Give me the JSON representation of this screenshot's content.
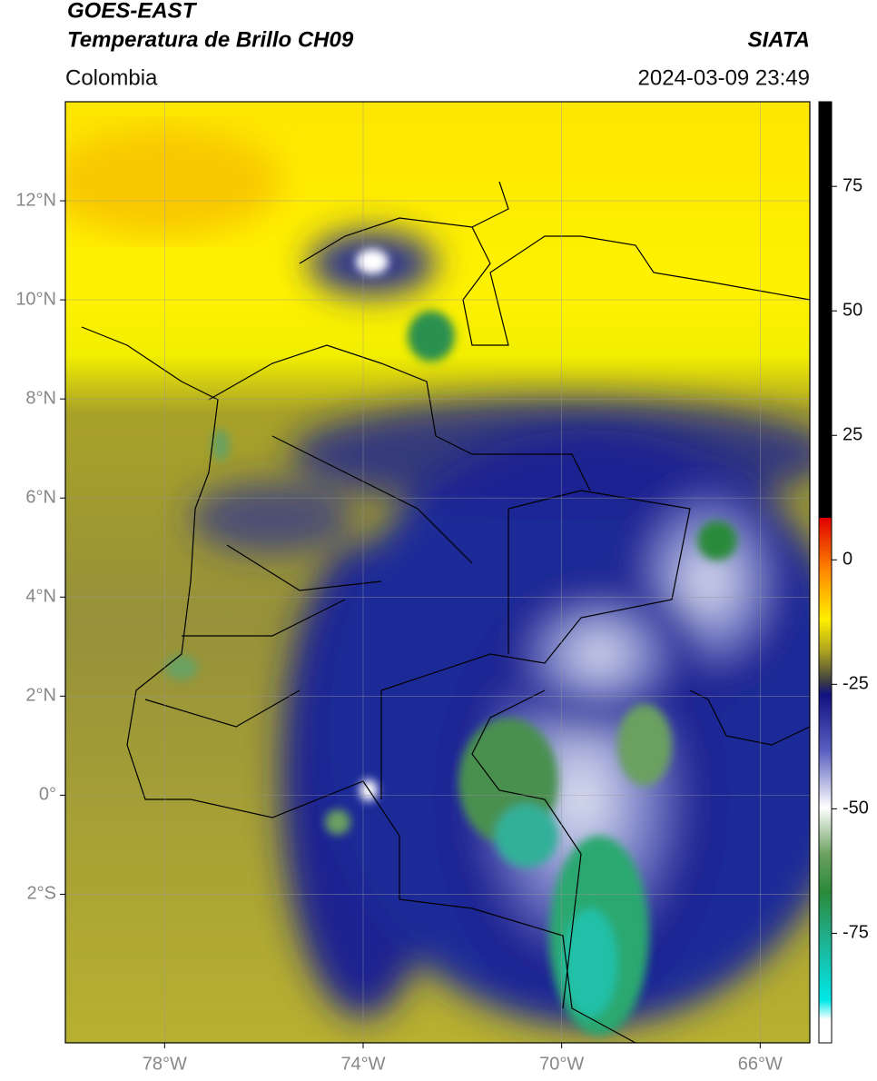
{
  "header": {
    "title": "GOES-EAST",
    "subtitle": "Temperatura de Brillo CH09",
    "source": "SIATA",
    "region": "Colombia",
    "datetime": "2024-03-09 23:49"
  },
  "map": {
    "xlim": [
      -80,
      -65
    ],
    "ylim": [
      -5,
      14
    ],
    "xticks": [
      {
        "value": -78,
        "label": "78°W"
      },
      {
        "value": -74,
        "label": "74°W"
      },
      {
        "value": -70,
        "label": "70°W"
      },
      {
        "value": -66,
        "label": "66°W"
      }
    ],
    "yticks": [
      {
        "value": 12,
        "label": "12°N"
      },
      {
        "value": 10,
        "label": "10°N"
      },
      {
        "value": 8,
        "label": "8°N"
      },
      {
        "value": 6,
        "label": "6°N"
      },
      {
        "value": 4,
        "label": "4°N"
      },
      {
        "value": 2,
        "label": "2°N"
      },
      {
        "value": 0,
        "label": "0°"
      },
      {
        "value": -2,
        "label": "2°S"
      }
    ]
  },
  "colorbar": {
    "lim": [
      -97,
      92
    ],
    "ticks": [
      75,
      50,
      25,
      0,
      -25,
      -50,
      -75
    ]
  }
}
